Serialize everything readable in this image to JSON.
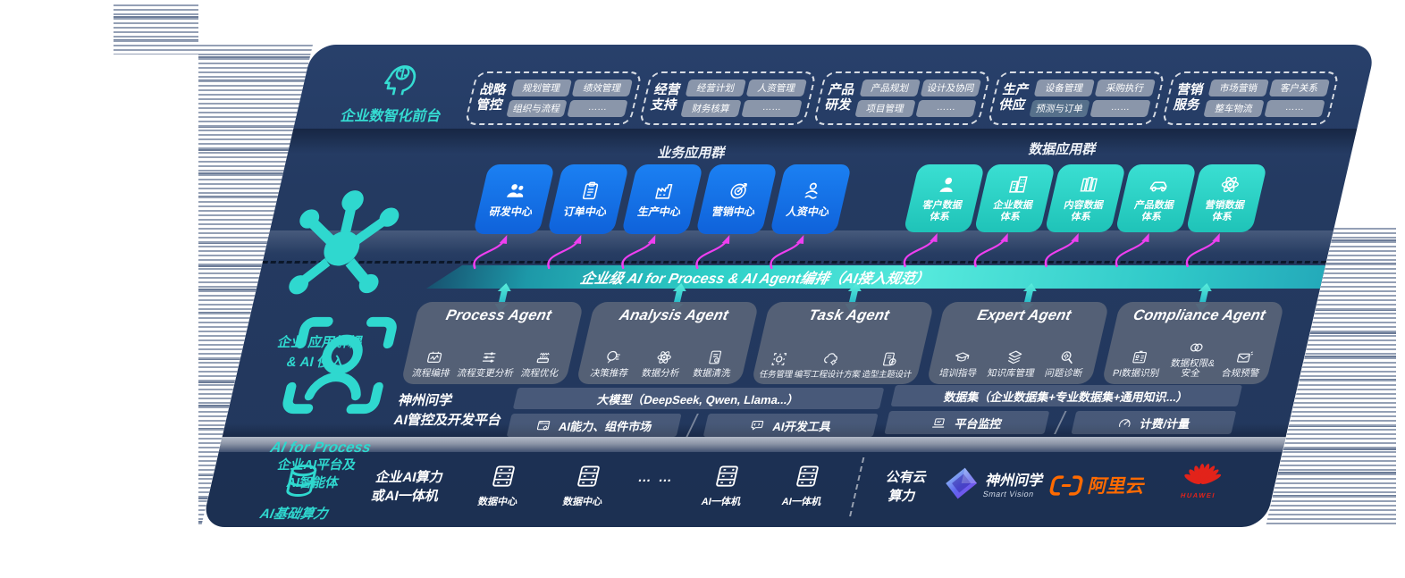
{
  "front_office": {
    "label": "企业数智化前台",
    "icon": "brain-circuit-icon",
    "groups": [
      {
        "title_line1": "战略",
        "title_line2": "管控",
        "chips": [
          "规划管理",
          "绩效管理",
          "组织与流程",
          "……"
        ]
      },
      {
        "title_line1": "经营",
        "title_line2": "支持",
        "chips": [
          "经营计划",
          "人资管理",
          "财务核算",
          "……"
        ]
      },
      {
        "title_line1": "产品",
        "title_line2": "研发",
        "chips": [
          "产品规划",
          "设计及协同",
          "项目管理",
          "……"
        ]
      },
      {
        "title_line1": "生产",
        "title_line2": "供应",
        "chips": [
          "设备管理",
          "采购执行",
          "预测与订单",
          "……"
        ]
      },
      {
        "title_line1": "营销",
        "title_line2": "服务",
        "chips": [
          "市场营销",
          "客户关系",
          "整车物流",
          "……"
        ]
      }
    ]
  },
  "decouple": {
    "label_line1": "企业 应用解耦",
    "label_line2": "& AI 侵入",
    "icon": "molecule-icon",
    "business_heading": "业务应用群",
    "business_apps": [
      {
        "label": "研发中心",
        "icon": "team-icon"
      },
      {
        "label": "订单中心",
        "icon": "clipboard-icon"
      },
      {
        "label": "生产中心",
        "icon": "factory-icon"
      },
      {
        "label": "营销中心",
        "icon": "target-icon"
      },
      {
        "label": "人资中心",
        "icon": "hr-people-icon"
      }
    ],
    "data_heading": "数据应用群",
    "data_apps": [
      {
        "line1": "客户数据",
        "line2": "体系",
        "icon": "person-icon"
      },
      {
        "line1": "企业数据",
        "line2": "体系",
        "icon": "building-icon"
      },
      {
        "line1": "内容数据",
        "line2": "体系",
        "icon": "books-icon"
      },
      {
        "line1": "产品数据",
        "line2": "体系",
        "icon": "car-icon"
      },
      {
        "line1": "营销数据",
        "line2": "体系",
        "icon": "atom-icon"
      }
    ]
  },
  "orchestration_bar": {
    "label": "企业级 AI for Process & AI Agent编排（AI接入规范）"
  },
  "ai_platform": {
    "label_title": "AI for Process",
    "label_line2": "企业AI平台及",
    "label_line3": "AI智能体",
    "icon": "scan-person-icon",
    "agents": [
      {
        "title": "Process Agent",
        "items": [
          {
            "label": "流程编排",
            "icon": "flow-icon"
          },
          {
            "label": "流程变更分析",
            "icon": "sliders-icon"
          },
          {
            "label": "流程优化",
            "icon": "machine-icon"
          }
        ]
      },
      {
        "title": "Analysis Agent",
        "items": [
          {
            "label": "决策推荐",
            "icon": "head-idea-icon"
          },
          {
            "label": "数据分析",
            "icon": "atom-icon"
          },
          {
            "label": "数据清洗",
            "icon": "doc-clean-icon"
          }
        ]
      },
      {
        "title": "Task Agent",
        "items": [
          {
            "label": "任务管理",
            "icon": "grid-bot-icon"
          },
          {
            "label": "编写工程设计方案",
            "icon": "cloud-gear-icon"
          },
          {
            "label": "造型主题设计",
            "icon": "tablet-check-icon"
          }
        ]
      },
      {
        "title": "Expert Agent",
        "items": [
          {
            "label": "培训指导",
            "icon": "training-icon"
          },
          {
            "label": "知识库管理",
            "icon": "layers-icon"
          },
          {
            "label": "问题诊断",
            "icon": "diagnose-icon"
          }
        ]
      },
      {
        "title": "Compliance Agent",
        "items": [
          {
            "label": "PI数据识别",
            "icon": "id-card-icon"
          },
          {
            "label": "数据权限&安全",
            "icon": "link-circles-icon"
          },
          {
            "label": "合规预警",
            "icon": "mail-alert-icon"
          }
        ]
      }
    ]
  },
  "platform": {
    "label_line1": "神州问学",
    "label_line2": "AI管控及开发平台",
    "model_bar": "大模型（DeepSeek, Qwen, Llama...）",
    "left_buttons": [
      {
        "label": "AI能力、组件市场",
        "icon": "app-market-icon"
      },
      {
        "label": "AI开发工具",
        "icon": "dev-tools-icon"
      }
    ],
    "dataset_bar": "数据集（企业数据集+专业数据集+通用知识...）",
    "right_buttons": [
      {
        "label": "平台监控",
        "icon": "monitor-icon"
      },
      {
        "label": "计费/计量",
        "icon": "gauge-icon"
      }
    ]
  },
  "infra": {
    "label": "AI基础算力",
    "icon": "database-icon",
    "compute_line1": "企业AI算力",
    "compute_line2": "或AI一体机",
    "servers": [
      {
        "label": "数据中心",
        "icon": "server-rack-icon"
      },
      {
        "label": "数据中心",
        "icon": "server-rack-icon"
      },
      {
        "label": "AI一体机",
        "icon": "server-rack-icon"
      },
      {
        "label": "AI一体机",
        "icon": "server-rack-icon"
      }
    ],
    "dots": "… …",
    "cloud_line1": "公有云",
    "cloud_line2": "算力",
    "vendors": {
      "smart_vision_name": "神州问学",
      "smart_vision_sub": "Smart Vision",
      "aliyun": "阿里云",
      "huawei": "HUAWEI"
    }
  },
  "colors": {
    "navy": "#243a61",
    "teal": "#2ed3c6",
    "blue": "#146fe8",
    "bar_teal": "#35d9cf",
    "magenta": "#ee3ff0",
    "aliyun_orange": "#ff6a00",
    "huawei_red": "#e2231a"
  }
}
